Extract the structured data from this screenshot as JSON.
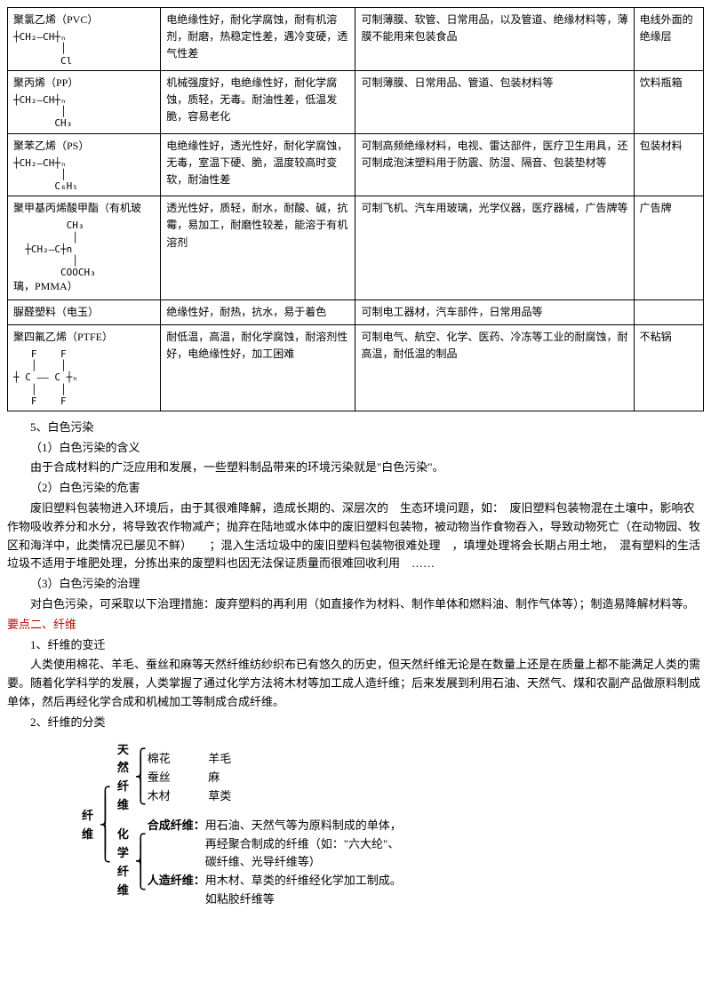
{
  "table": {
    "rows": [
      {
        "name": "聚氯乙烯（PVC）",
        "formula": "┼CH₂—CH┼ₙ\n        │\n        Cl",
        "prop": "电绝缘性好，耐化学腐蚀，耐有机溶剂，耐磨，热稳定性差，遇冷变硬，透气性差",
        "use": "可制薄膜、软管、日常用品，以及管道、绝缘材料等，薄膜不能用来包装食品",
        "ex": "电线外面的绝缘层"
      },
      {
        "name": "聚丙烯（PP）",
        "formula": "┼CH₂—CH┼ₙ\n        │\n       CH₃",
        "prop": "机械强度好，电绝缘性好，耐化学腐蚀，质轻，无毒。耐油性差，低温发脆，容易老化",
        "use": "可制薄膜、日常用品、管道、包装材料等",
        "ex": "饮料瓶箱"
      },
      {
        "name": "聚苯乙烯（PS）",
        "formula": "┼CH₂—CH┼ₙ\n        │\n       C₆H₅",
        "prop": "电绝缘性好，透光性好，耐化学腐蚀，无毒，室温下硬、脆，温度较高时变软，耐油性差",
        "use": "可制高频绝缘材料，电视、雷达部件，医疗卫生用具，还可制成泡沫塑料用于防震、防湿、隔音、包装垫材等",
        "ex": "包装材料"
      },
      {
        "name": "聚甲基丙烯酸甲酯（有机玻",
        "formula": "         CH₃\n          │\n  ┼CH₂—C┼n\n          │\n        COOCH₃",
        "name_tail": "璃，PMMA）",
        "prop": "透光性好，质轻，耐水，耐酸、碱，抗霉，易加工，耐磨性较差，能溶于有机溶剂",
        "use": "可制飞机、汽车用玻璃，光学仪器，医疗器械，广告牌等",
        "ex": "广告牌"
      },
      {
        "name": "脲醛塑料（电玉）",
        "formula": "",
        "prop": "绝缘性好，耐热，抗水，易于着色",
        "use": "可制电工器材，汽车部件，日常用品等",
        "ex": ""
      },
      {
        "name": "聚四氟乙烯（PTFE）",
        "formula": "   F    F\n   │    │\n┼ C —— C ┼ₙ\n   │    │\n   F    F",
        "prop": "耐低温，高温，耐化学腐蚀，耐溶剂性好，电绝缘性好，加工困难",
        "use": "可制电气、航空、化学、医药、冷冻等工业的耐腐蚀，耐高温，耐低温的制品",
        "ex": "不粘锅"
      }
    ]
  },
  "body": {
    "h5": "5、白色污染",
    "h5_1": "（1）白色污染的含义",
    "p1": "由于合成材料的广泛应用和发展，一些塑料制品带来的环境污染就是\"白色污染\"。",
    "h5_2": "（2）白色污染的危害",
    "p2": "废旧塑料包装物进入环境后，由于其很难降解，造成长期的、深层次的　生态环境问题，如：　废旧塑料包装物混在土壤中，影响农作物吸收养分和水分，将导致农作物减产；抛弃在陆地或水体中的废旧塑料包装物，被动物当作食物吞入，导致动物死亡（在动物园、牧区和海洋中，此类情况已屡见不鲜）　　；混入生活垃圾中的废旧塑料包装物很难处理　，填埋处理将会长期占用土地，　混有塑料的生活垃圾不适用于堆肥处理，分拣出来的废塑料也因无法保证质量而很难回收利用　……",
    "h5_3": "（3）白色污染的治理",
    "p3": "对白色污染，可采取以下治理措施：废弃塑料的再利用（如直接作为材料、制作单体和燃料油、制作气体等）；制造易降解材料等。",
    "sec2": "要点二、纤维",
    "h2_1": "1、纤维的变迁",
    "p4": "人类使用棉花、羊毛、蚕丝和麻等天然纤维纺纱织布已有悠久的历史，但天然纤维无论是在数量上还是在质量上都不能满足人类的需要。随着化学科学的发展，人类掌握了通过化学方法将木材等加工成人造纤维；后来发展到利用石油、天然气、煤和农副产品做原料制成单体，然后再经化学合成和机械加工等制成合成纤维。",
    "h2_2": "2、纤维的分类"
  },
  "tree": {
    "root": "纤\n维",
    "a_label": "天\n然\n纤\n维",
    "a_items": [
      "棉花",
      "羊毛",
      "蚕丝",
      "麻",
      "木材",
      "草类"
    ],
    "b_label": "化\n学\n纤\n维",
    "b1_label": "合成纤维：",
    "b1_text": "用石油、天然气等为原料制成的单体，\n再经聚合制成的纤维（如：\"六大纶\"、\n碳纤维、光导纤维等）",
    "b2_label": "人造纤维：",
    "b2_text": "用木材、草类的纤维经化学加工制成。\n如粘胶纤维等"
  }
}
